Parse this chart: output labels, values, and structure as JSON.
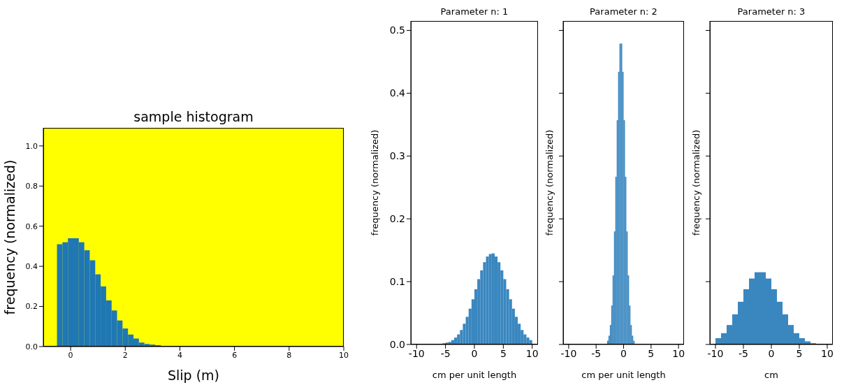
{
  "chart_data": [
    {
      "type": "histogram",
      "title": "sample histogram",
      "xlabel": "Slip (m)",
      "ylabel": "frequency (normalized)",
      "color": "#1f77b4",
      "xlim": [
        -1,
        10
      ],
      "ylim": [
        0,
        1.09
      ],
      "xticks": [
        0,
        2,
        4,
        6,
        8,
        10
      ],
      "yticks": [
        {
          "value": 0,
          "label": "0.0"
        },
        {
          "value": 0.2,
          "label": "0.2"
        },
        {
          "value": 0.4,
          "label": "0.4"
        },
        {
          "value": 0.6,
          "label": "0.6"
        },
        {
          "value": 0.8,
          "label": "0.8"
        },
        {
          "value": 1,
          "label": "1.0"
        }
      ],
      "bins": [
        -0.5,
        -0.3,
        -0.1,
        0.1,
        0.3,
        0.5,
        0.7,
        0.9,
        1.1,
        1.3,
        1.5,
        1.7,
        1.9,
        2.1,
        2.3,
        2.5,
        2.7,
        2.9,
        3.1,
        3.3,
        3.5
      ],
      "values": [
        0.51,
        0.52,
        0.54,
        0.54,
        0.52,
        0.48,
        0.43,
        0.36,
        0.3,
        0.23,
        0.18,
        0.13,
        0.09,
        0.06,
        0.04,
        0.02,
        0.013,
        0.01,
        0.007,
        0
      ]
    },
    {
      "type": "histogram",
      "title": "Parameter n: 1",
      "xlabel": "cm per unit length",
      "ylabel": "frequency (normalized)",
      "color": "#3a87c0",
      "xlim": [
        -11,
        11
      ],
      "ylim": [
        0,
        0.515
      ],
      "xticks": [
        -10,
        -5,
        0,
        5,
        10
      ],
      "yticks": [
        {
          "value": 0,
          "label": "0.0"
        },
        {
          "value": 0.1,
          "label": "0.1"
        },
        {
          "value": 0.2,
          "label": "0.2"
        },
        {
          "value": 0.3,
          "label": "0.3"
        },
        {
          "value": 0.4,
          "label": "0.4"
        },
        {
          "value": 0.5,
          "label": "0.5"
        }
      ],
      "bins": [
        -6,
        -5.5,
        -5,
        -4.5,
        -4,
        -3.5,
        -3,
        -2.5,
        -2,
        -1.5,
        -1,
        -0.5,
        0,
        0.5,
        1,
        1.5,
        2,
        2.5,
        3,
        3.5,
        4,
        4.5,
        5,
        5.5,
        6,
        6.5,
        7,
        7.5,
        8,
        8.5,
        9,
        9.5,
        10
      ],
      "values": [
        0.001,
        0.002,
        0.003,
        0.004,
        0.007,
        0.011,
        0.016,
        0.023,
        0.033,
        0.044,
        0.057,
        0.072,
        0.088,
        0.104,
        0.118,
        0.131,
        0.14,
        0.144,
        0.145,
        0.14,
        0.131,
        0.118,
        0.104,
        0.088,
        0.072,
        0.057,
        0.044,
        0.033,
        0.023,
        0.016,
        0.011,
        0.007
      ]
    },
    {
      "type": "histogram",
      "title": "Parameter n: 2",
      "xlabel": "cm per unit length",
      "ylabel": "frequency (normalized)",
      "color": "#3a87c0",
      "xlim": [
        -11,
        11
      ],
      "ylim": [
        0,
        0.515
      ],
      "xticks": [
        -10,
        -5,
        0,
        5,
        10
      ],
      "yticks": [
        {
          "value": 0,
          "label": null
        },
        {
          "value": 0.1,
          "label": null
        },
        {
          "value": 0.2,
          "label": null
        },
        {
          "value": 0.3,
          "label": null
        },
        {
          "value": 0.4,
          "label": null
        },
        {
          "value": 0.5,
          "label": null
        }
      ],
      "tick_labels": "x",
      "bins": [
        -3,
        -2.75,
        -2.5,
        -2.25,
        -2,
        -1.75,
        -1.5,
        -1.25,
        -1,
        -0.75,
        -0.5,
        -0.25,
        0,
        0.25,
        0.5,
        0.75,
        1,
        1.25,
        1.5,
        1.75,
        2
      ],
      "values": [
        0.006,
        0.014,
        0.031,
        0.062,
        0.11,
        0.18,
        0.267,
        0.357,
        0.434,
        0.479,
        0.479,
        0.434,
        0.357,
        0.267,
        0.18,
        0.11,
        0.062,
        0.031,
        0.014,
        0.006
      ]
    },
    {
      "type": "histogram",
      "title": "Parameter n: 3",
      "xlabel": "cm",
      "ylabel": "frequency (normalized)",
      "color": "#3a87c0",
      "xlim": [
        -11,
        11
      ],
      "ylim": [
        0,
        0.515
      ],
      "xticks": [
        -10,
        -5,
        0,
        5,
        10
      ],
      "yticks": [
        {
          "value": 0,
          "label": null
        },
        {
          "value": 0.1,
          "label": null
        },
        {
          "value": 0.2,
          "label": null
        },
        {
          "value": 0.3,
          "label": null
        },
        {
          "value": 0.4,
          "label": null
        },
        {
          "value": 0.5,
          "label": null
        }
      ],
      "tick_labels": "x",
      "bins": [
        -10,
        -9,
        -8,
        -7,
        -6,
        -5,
        -4,
        -3,
        -2,
        -1,
        0,
        1,
        2,
        3,
        4,
        5,
        6,
        7,
        8,
        9,
        10
      ],
      "values": [
        0.01,
        0.018,
        0.031,
        0.048,
        0.068,
        0.088,
        0.105,
        0.115,
        0.115,
        0.105,
        0.088,
        0.068,
        0.048,
        0.031,
        0.018,
        0.01,
        0.005,
        0.002,
        0.001,
        0
      ]
    }
  ]
}
